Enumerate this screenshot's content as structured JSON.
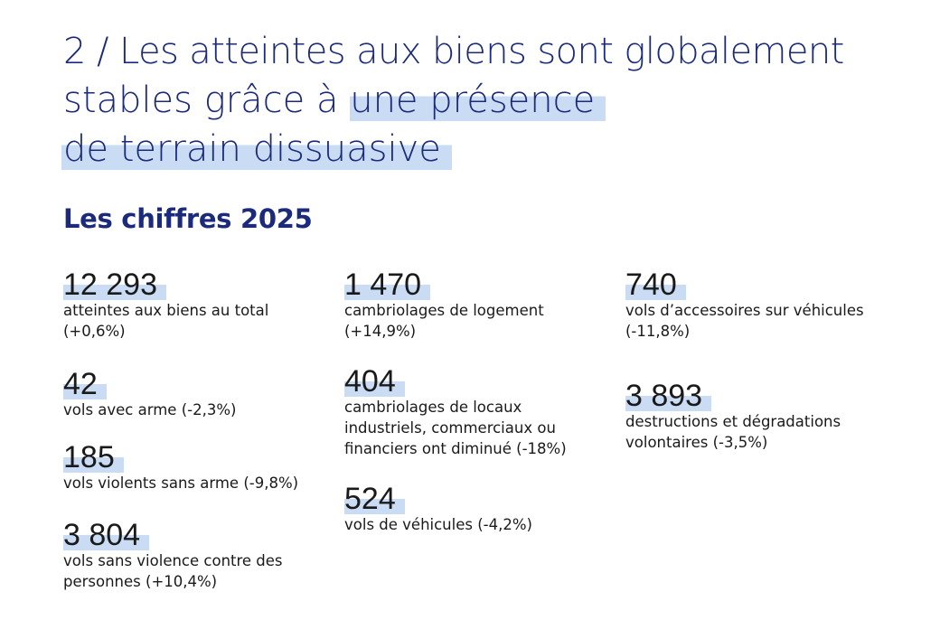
{
  "title": {
    "line1": "2 / Les atteintes aux biens sont globalement",
    "line2_plain": "stables grâce à ",
    "line2_highlight": "une présence",
    "line3_highlight": "de terrain dissuasive"
  },
  "subtitle": "Les chiffres 2025",
  "col1": [
    {
      "number": "12 293",
      "label": "atteintes aux biens au total (+0,6%)"
    },
    {
      "number": "42",
      "label": "vols avec arme (-2,3%)"
    },
    {
      "number": "185",
      "label": "vols violents sans arme (-9,8%)"
    },
    {
      "number": "3 804",
      "label": "vols sans violence contre des personnes (+10,4%)"
    }
  ],
  "col2": [
    {
      "number": "1 470",
      "label": "cambriolages de logement (+14,9%)"
    },
    {
      "number": "404",
      "label": "cambriolages de locaux industriels, commerciaux ou financiers ont diminué (-18%)"
    },
    {
      "number": "524",
      "label": "vols de véhicules (-4,2%)"
    }
  ],
  "col3": [
    {
      "number": "740",
      "label": "vols d’accessoires sur véhicules (-11,8%)"
    },
    {
      "number": "3 893",
      "label": "destructions et dégradations volontaires (-3,5%)"
    }
  ]
}
